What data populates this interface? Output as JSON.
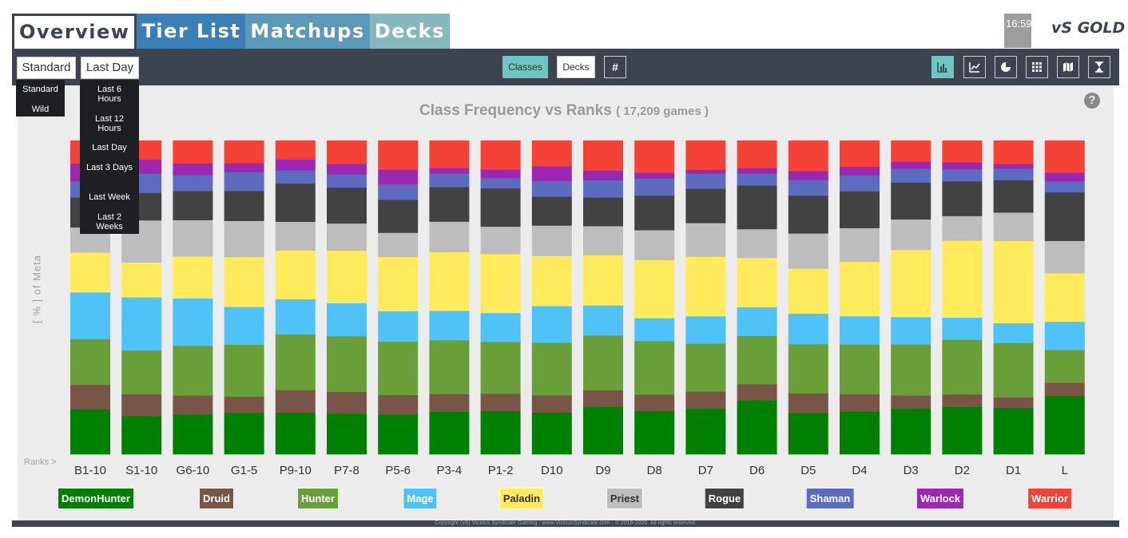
{
  "nav": {
    "tabs": [
      {
        "label": "Overview"
      },
      {
        "label": "Tier List"
      },
      {
        "label": "Matchups"
      },
      {
        "label": "Decks"
      }
    ]
  },
  "header": {
    "clock": "16:59",
    "logo": "vS GOLD"
  },
  "toolbar": {
    "format_select": "Standard",
    "time_select": "Last Day",
    "classes_button": "Classes",
    "decks_button": "Decks",
    "hash_button": "#",
    "view_icons": [
      "bar-chart-icon",
      "line-chart-icon",
      "pie-chart-icon",
      "grid-icon",
      "map-icon",
      "hourglass-icon"
    ]
  },
  "format_dropdown": [
    "Standard",
    "Wild"
  ],
  "time_dropdown": [
    "Last 6 Hours",
    "Last 12 Hours",
    "Last Day",
    "Last 3 Days",
    "Last Week",
    "Last 2 Weeks"
  ],
  "help_icon": "?",
  "ranks_label": "Ranks >",
  "footer": "Copyright (vS) Vicious Syndicate Gaming - www.ViciousSyndicate.com - © 2016-2020. All rights reserved.",
  "chart_data": {
    "type": "bar",
    "stacked": true,
    "title": "Class Frequency vs Ranks",
    "subtitle": "( 17,209 games )",
    "ylabel": "[ % ] of Meta",
    "ylim": [
      0,
      100
    ],
    "grid": false,
    "legend_position": "bottom",
    "categories": [
      "B1-10",
      "S1-10",
      "G6-10",
      "G1-5",
      "P9-10",
      "P7-8",
      "P5-6",
      "P3-4",
      "P1-2",
      "D10",
      "D9",
      "D8",
      "D7",
      "D6",
      "D5",
      "D4",
      "D3",
      "D2",
      "D1",
      "L"
    ],
    "series": [
      {
        "name": "DemonHunter",
        "color": "#008000",
        "values": [
          13.8,
          12.0,
          12.6,
          13.1,
          13.3,
          13.0,
          12.6,
          13.3,
          13.8,
          13.3,
          15.0,
          13.8,
          14.5,
          17.3,
          13.1,
          13.6,
          14.5,
          15.0,
          14.8,
          18.6
        ]
      },
      {
        "name": "Druid",
        "color": "#795548",
        "values": [
          7.5,
          7.0,
          6.0,
          5.2,
          7.2,
          7.0,
          6.3,
          5.5,
          5.5,
          5.5,
          5.2,
          5.2,
          5.5,
          5.2,
          6.3,
          5.5,
          4.2,
          4.0,
          3.3,
          4.2
        ]
      },
      {
        "name": "Hunter",
        "color": "#689f38",
        "values": [
          14.0,
          13.8,
          15.8,
          16.5,
          17.8,
          17.8,
          17.0,
          16.8,
          16.5,
          16.8,
          17.3,
          17.0,
          15.3,
          15.5,
          15.6,
          15.8,
          16.3,
          17.3,
          17.3,
          10.5
        ]
      },
      {
        "name": "Mage",
        "color": "#4fc3f7",
        "values": [
          14.3,
          16.8,
          15.0,
          12.0,
          11.2,
          10.5,
          9.7,
          9.2,
          9.2,
          11.7,
          9.5,
          7.3,
          8.7,
          9.2,
          9.7,
          9.0,
          8.7,
          7.0,
          6.3,
          9.0
        ]
      },
      {
        "name": "Paladin",
        "color": "#ffeb5b",
        "values": [
          12.2,
          11.0,
          13.3,
          15.8,
          15.5,
          16.8,
          17.3,
          18.3,
          18.8,
          16.0,
          15.8,
          18.5,
          19.0,
          15.8,
          14.3,
          17.3,
          21.4,
          24.4,
          26.2,
          15.5
        ]
      },
      {
        "name": "Priest",
        "color": "#bdbdbd",
        "values": [
          7.7,
          13.3,
          11.5,
          11.5,
          9.2,
          8.7,
          7.7,
          9.5,
          8.7,
          9.7,
          9.2,
          9.5,
          10.7,
          9.2,
          11.2,
          10.7,
          9.7,
          7.8,
          9.0,
          10.3
        ]
      },
      {
        "name": "Rogue",
        "color": "#424242",
        "values": [
          9.2,
          8.7,
          9.2,
          9.5,
          12.2,
          11.5,
          10.5,
          10.8,
          12.2,
          9.2,
          9.0,
          11.0,
          11.0,
          14.0,
          12.0,
          11.7,
          11.7,
          11.0,
          10.3,
          15.5
        ]
      },
      {
        "name": "Shaman",
        "color": "#5c6bc0",
        "values": [
          4.9,
          6.0,
          5.0,
          6.0,
          4.2,
          4.2,
          5.0,
          4.2,
          3.3,
          5.0,
          5.5,
          5.5,
          4.8,
          3.8,
          5.0,
          5.0,
          4.5,
          3.8,
          3.7,
          3.5
        ]
      },
      {
        "name": "Warlock",
        "color": "#9c27b0",
        "values": [
          5.5,
          4.5,
          3.8,
          2.8,
          3.5,
          3.3,
          4.7,
          1.8,
          2.7,
          4.7,
          3.0,
          1.8,
          1.2,
          1.8,
          2.8,
          2.8,
          2.2,
          2.2,
          1.5,
          2.8
        ]
      },
      {
        "name": "Warrior",
        "color": "#f44336",
        "values": [
          7.0,
          6.0,
          7.2,
          7.2,
          6.0,
          7.5,
          9.2,
          8.5,
          9.2,
          8.2,
          9.5,
          10.2,
          9.3,
          8.8,
          9.7,
          8.3,
          6.7,
          6.9,
          7.4,
          10.2
        ]
      }
    ]
  }
}
